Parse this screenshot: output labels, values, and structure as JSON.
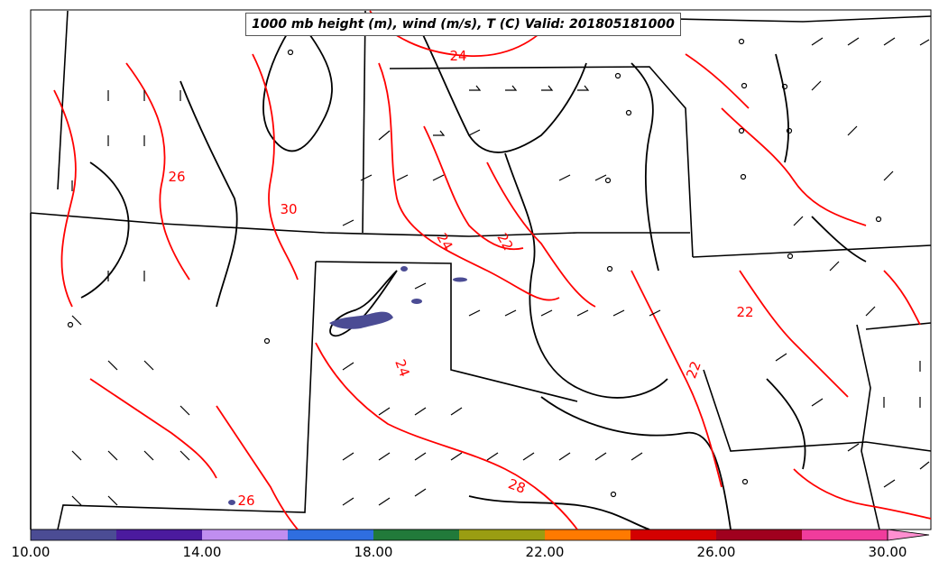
{
  "title": "1000 mb height (m), wind (m/s), T (C) Valid: 201805181000",
  "colorbar": {
    "tick_labels": [
      "10.00",
      "14.00",
      "18.00",
      "22.00",
      "26.00",
      "30.00"
    ],
    "colors": [
      "#4b4c94",
      "#4b1a9e",
      "#c08ef0",
      "#2f6ee0",
      "#217a3a",
      "#9a9d12",
      "#ff7a00",
      "#d40000",
      "#a0001e",
      "#f03c9c",
      "#ff8fd0"
    ]
  },
  "contour_labels": [
    "24",
    "26",
    "30",
    "24",
    "22",
    "24",
    "22",
    "22",
    "28",
    "26"
  ],
  "colors": {
    "temperature_contour": "#ff0000",
    "height_contour": "#000000",
    "boundaries": "#000000",
    "shaded_region": "#4b4c94"
  }
}
